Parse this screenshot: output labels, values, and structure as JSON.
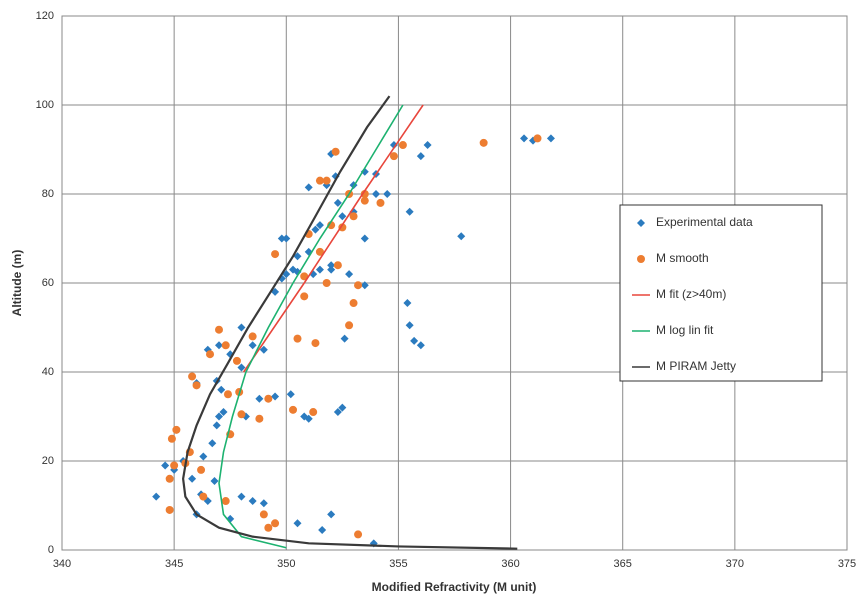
{
  "chart_data": {
    "type": "scatter",
    "x_label": "Modified Refractivity (M unit)",
    "y_label": "Altitude (m)",
    "xlim": [
      340,
      375
    ],
    "xticks": [
      340,
      345,
      350,
      355,
      360,
      365,
      370,
      375
    ],
    "ylim": [
      0,
      120
    ],
    "yticks": [
      0,
      20,
      40,
      60,
      80,
      100,
      120
    ],
    "grid": true,
    "legend": "right",
    "series": [
      {
        "name": "Experimental data",
        "type": "scatter",
        "marker": "diamond",
        "color": "#2b7bbf",
        "x": [
          344.2,
          344.6,
          345.0,
          345.4,
          345.8,
          346.2,
          346.5,
          346.0,
          347.5,
          348.0,
          348.5,
          349.0,
          349.5,
          350.5,
          351.6,
          352.0,
          353.9,
          346.8,
          346.3,
          346.7,
          347.0,
          347.2,
          346.9,
          347.5,
          348.2,
          348.8,
          349.5,
          350.2,
          350.8,
          351.0,
          352.3,
          352.5,
          346.0,
          346.5,
          347.0,
          347.5,
          348.0,
          348.5,
          349.0,
          346.9,
          347.1,
          349.5,
          350.0,
          349.8,
          350.3,
          350.5,
          351.2,
          351.5,
          352.0,
          352.8,
          353.5,
          349.8,
          350.0,
          351.3,
          351.5,
          352.5,
          353.0,
          351.0,
          351.8,
          352.2,
          353.5,
          354.0,
          354.5,
          353.0,
          355.5,
          356.0,
          356.3,
          354.8,
          352.0,
          352.3,
          351.0,
          352.0,
          353.5,
          355.5,
          355.7,
          356.0,
          355.4,
          357.8,
          360.6,
          361.0,
          361.8,
          352.6,
          348.0,
          354.0,
          350.5
        ],
        "values": [
          12,
          19,
          18,
          20,
          16,
          12.5,
          11,
          8,
          7,
          12,
          11,
          10.5,
          6,
          6,
          4.5,
          8,
          1.5,
          15.5,
          21,
          24,
          30,
          31,
          28,
          26,
          30,
          34,
          34.5,
          35,
          30,
          29.5,
          31,
          32,
          37.5,
          45,
          46,
          44,
          41,
          46,
          45,
          38,
          36,
          58,
          62,
          61,
          63,
          62.5,
          62,
          63,
          64,
          62,
          59.5,
          70,
          70,
          72,
          73,
          75,
          76,
          81.5,
          82,
          84,
          85,
          80,
          80,
          82,
          76,
          88.5,
          91,
          91,
          89,
          78,
          67,
          63,
          70,
          50.5,
          47,
          46,
          55.5,
          70.5,
          92.5,
          92,
          92.5,
          47.5,
          50,
          84.5,
          66
        ]
      },
      {
        "name": "M smooth",
        "type": "scatter",
        "marker": "circle",
        "color": "#ed7d31",
        "x": [
          344.8,
          344.8,
          344.9,
          345.1,
          345.0,
          345.5,
          345.7,
          346.2,
          346.3,
          345.8,
          346.0,
          346.6,
          347.0,
          347.3,
          347.8,
          347.4,
          347.5,
          348.0,
          347.9,
          348.5,
          348.8,
          349.2,
          349.0,
          349.2,
          349.5,
          353.2,
          347.3,
          349.5,
          350.3,
          351.2,
          350.5,
          351.3,
          350.8,
          350.8,
          351.5,
          351.8,
          352.3,
          352.8,
          353.0,
          353.2,
          352.5,
          352.8,
          353.5,
          354.2,
          354.8,
          355.2,
          358.8,
          361.2,
          352.2,
          351.5,
          351.8,
          352.0,
          351.0,
          353.5,
          353.0
        ],
        "values": [
          9,
          16,
          25,
          27,
          19,
          19.5,
          22,
          18,
          12,
          39,
          37,
          44,
          49.5,
          46,
          42.5,
          35,
          26,
          30.5,
          35.5,
          48,
          29.5,
          34,
          8,
          5,
          6,
          3.5,
          11,
          66.5,
          31.5,
          31,
          47.5,
          46.5,
          57,
          61.5,
          67,
          60,
          64,
          50.5,
          55.5,
          59.5,
          72.5,
          80,
          80,
          78,
          88.5,
          91,
          91.5,
          92.5,
          89.5,
          83,
          83,
          73,
          71,
          78.5,
          75
        ]
      },
      {
        "name": "M fit (z>40m)",
        "type": "line",
        "color": "#e8463c",
        "x": [
          348.1,
          350.8,
          353.4,
          356.1
        ],
        "values": [
          40,
          60,
          80,
          100
        ]
      },
      {
        "name": "M log lin fit",
        "type": "line",
        "color": "#1db270",
        "x": [
          350,
          348,
          347.2,
          347,
          347.2,
          347.6,
          348.2,
          349.2,
          350.3,
          351.5,
          352.8,
          354,
          355.2
        ],
        "values": [
          0.5,
          3,
          8,
          15,
          22,
          30,
          40,
          50,
          60,
          70,
          80,
          90,
          100
        ]
      },
      {
        "name": "M PIRAM Jetty",
        "type": "line",
        "color": "#3a3a3a",
        "x": [
          360.3,
          355,
          351,
          348.5,
          347,
          346,
          345.5,
          345.4,
          345.6,
          346,
          346.6,
          347.4,
          348.3,
          349.3,
          350.3,
          351.3,
          352.4,
          353.6,
          354.6
        ],
        "values": [
          0.3,
          0.8,
          1.5,
          3,
          5,
          8,
          12,
          16,
          22,
          28,
          35,
          42,
          50,
          58,
          66,
          75,
          85,
          95,
          102
        ]
      }
    ]
  }
}
